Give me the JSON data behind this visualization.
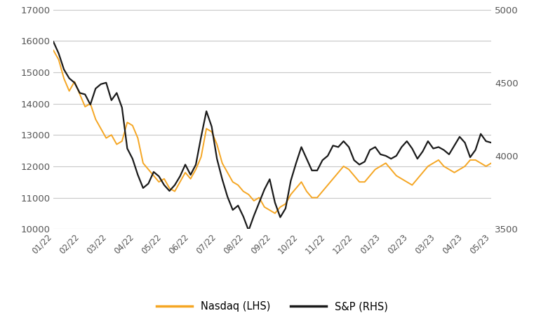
{
  "x_labels": [
    "01/22",
    "02/22",
    "03/22",
    "04/22",
    "05/22",
    "06/22",
    "07/22",
    "08/22",
    "09/22",
    "10/22",
    "11/22",
    "12/22",
    "01/23",
    "02/23",
    "03/23",
    "04/23",
    "05/23"
  ],
  "ylim_left": [
    10000,
    17000
  ],
  "ylim_right": [
    3500,
    5000
  ],
  "yticks_left": [
    10000,
    11000,
    12000,
    13000,
    14000,
    15000,
    16000,
    17000
  ],
  "yticks_right": [
    3500,
    4000,
    4500,
    5000
  ],
  "nasdaq_color": "#F5A623",
  "sp500_color": "#1A1A1A",
  "background_color": "#FFFFFF",
  "grid_color": "#C8C8C8",
  "legend_nasdaq": "Nasdaq (LHS)",
  "legend_sp500": "S&P (RHS)",
  "nasdaq_data": [
    15700,
    15400,
    14800,
    14400,
    14700,
    14300,
    13900,
    14000,
    13500,
    13200,
    12900,
    13000,
    12700,
    12800,
    13400,
    13300,
    12900,
    12100,
    11900,
    11700,
    11500,
    11600,
    11300,
    11200,
    11500,
    11800,
    11600,
    11900,
    12300,
    13200,
    13100,
    12700,
    12100,
    11800,
    11500,
    11400,
    11200,
    11100,
    10900,
    11000,
    10700,
    10600,
    10500,
    10700,
    10800,
    11100,
    11300,
    11500,
    11200,
    11000,
    11000,
    11200,
    11400,
    11600,
    11800,
    12000,
    11900,
    11700,
    11500,
    11500,
    11700,
    11900,
    12000,
    12100,
    11900,
    11700,
    11600,
    11500,
    11400,
    11600,
    11800,
    12000,
    12100,
    12200,
    12000,
    11900,
    11800,
    11900,
    12000,
    12200,
    12200,
    12100,
    12000,
    12100
  ],
  "sp500_data": [
    4780,
    4700,
    4590,
    4530,
    4500,
    4430,
    4420,
    4350,
    4460,
    4490,
    4500,
    4380,
    4430,
    4330,
    4050,
    3980,
    3870,
    3780,
    3810,
    3890,
    3860,
    3800,
    3760,
    3800,
    3860,
    3940,
    3870,
    3940,
    4130,
    4305,
    4200,
    3980,
    3840,
    3720,
    3630,
    3660,
    3585,
    3490,
    3590,
    3680,
    3770,
    3840,
    3680,
    3580,
    3640,
    3830,
    3950,
    4060,
    3980,
    3900,
    3900,
    3970,
    4000,
    4070,
    4060,
    4100,
    4060,
    3970,
    3940,
    3960,
    4040,
    4060,
    4010,
    4000,
    3980,
    4000,
    4060,
    4100,
    4050,
    3980,
    4030,
    4100,
    4050,
    4060,
    4040,
    4010,
    4070,
    4130,
    4090,
    3990,
    4040,
    4150,
    4100,
    4090
  ]
}
